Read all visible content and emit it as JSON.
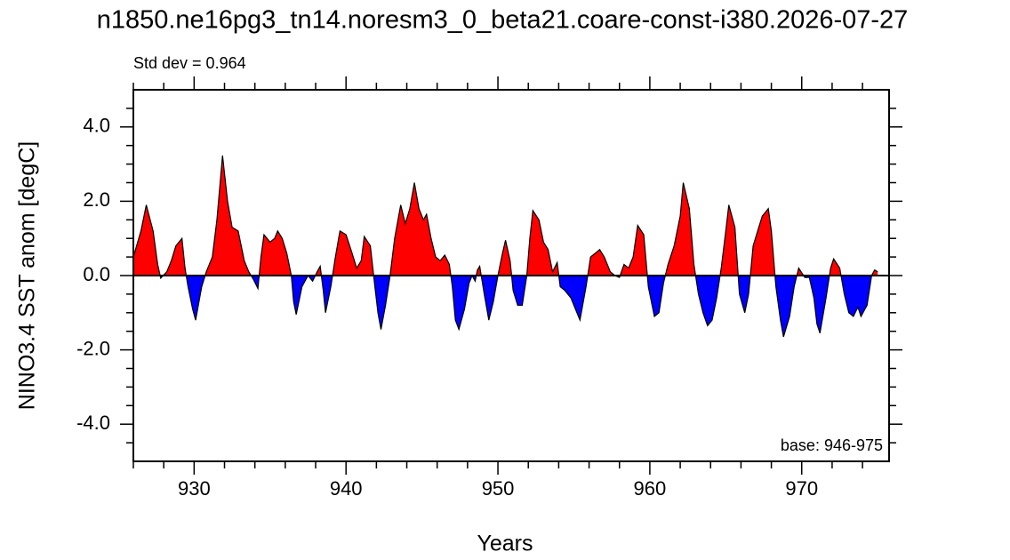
{
  "chart_data": {
    "type": "area",
    "title": "n1850.ne16pg3_tn14.noresm3_0_beta21.coare-const-i380.2026-07-27",
    "subtitle": "Std dev = 0.964",
    "annotation": "base: 946-975",
    "xlabel": "Years",
    "ylabel": "NINO3.4 SST anom [degC]",
    "positive_color": "#ff0000",
    "negative_color": "#0000ff",
    "line_color": "#000000",
    "xlim": [
      926,
      975.75
    ],
    "ylim": [
      -5,
      5
    ],
    "xticks": [
      930,
      940,
      950,
      960,
      970
    ],
    "xminorticks": [
      926,
      928,
      932,
      934,
      936,
      938,
      942,
      944,
      946,
      948,
      952,
      954,
      956,
      958,
      962,
      964,
      966,
      968,
      972,
      974
    ],
    "yticks": [
      {
        "value": -4,
        "label": "-4.0"
      },
      {
        "value": -2,
        "label": "-2.0"
      },
      {
        "value": 0,
        "label": "0.0"
      },
      {
        "value": 2,
        "label": "2.0"
      },
      {
        "value": 4,
        "label": "4.0"
      }
    ],
    "yminorticks": [
      -4.5,
      -3.5,
      -3,
      -2.5,
      -1.5,
      -1,
      -0.5,
      0.5,
      1,
      1.5,
      2.5,
      3,
      3.5,
      4.5
    ],
    "x": [
      926.0,
      926.5,
      926.85,
      927.3,
      927.6,
      927.8,
      928.2,
      928.5,
      928.8,
      929.2,
      929.4,
      929.6,
      929.9,
      930.1,
      930.5,
      930.8,
      931.2,
      931.5,
      931.87,
      932.2,
      932.5,
      932.9,
      933.3,
      933.6,
      933.9,
      934.2,
      934.4,
      934.6,
      935.0,
      935.3,
      935.5,
      935.8,
      936.1,
      936.4,
      936.55,
      936.72,
      937.1,
      937.5,
      937.8,
      938.1,
      938.3,
      938.5,
      938.65,
      939.0,
      939.3,
      939.6,
      940.0,
      940.4,
      940.7,
      941.0,
      941.2,
      941.6,
      941.9,
      942.1,
      942.3,
      942.6,
      942.9,
      943.2,
      943.6,
      943.9,
      944.2,
      944.5,
      944.8,
      945.1,
      945.3,
      945.6,
      945.9,
      946.2,
      946.5,
      946.8,
      947.0,
      947.2,
      947.43,
      947.8,
      948.1,
      948.3,
      948.5,
      948.65,
      948.8,
      949.1,
      949.4,
      949.7,
      950.0,
      950.3,
      950.5,
      950.8,
      951.0,
      951.3,
      951.6,
      951.9,
      952.1,
      952.3,
      952.7,
      953.0,
      953.3,
      953.6,
      953.9,
      954.1,
      954.4,
      954.8,
      955.1,
      955.4,
      955.8,
      956.1,
      956.4,
      956.7,
      957.0,
      957.4,
      957.7,
      958.0,
      958.3,
      958.6,
      958.9,
      959.2,
      959.6,
      959.9,
      960.3,
      960.6,
      960.9,
      961.2,
      961.6,
      962.0,
      962.2,
      962.6,
      962.9,
      963.2,
      963.5,
      963.8,
      964.1,
      964.4,
      964.7,
      965.0,
      965.2,
      965.6,
      965.9,
      966.25,
      966.5,
      966.8,
      967.1,
      967.4,
      967.8,
      968.0,
      968.3,
      968.6,
      968.8,
      969.2,
      969.5,
      969.8,
      970.2,
      970.5,
      970.8,
      971.0,
      971.2,
      971.6,
      971.9,
      972.1,
      972.5,
      972.8,
      973.1,
      973.4,
      973.7,
      973.9,
      974.3,
      974.6,
      974.8,
      975.0
    ],
    "values": [
      0.5,
      1.2,
      1.9,
      1.2,
      0.3,
      -0.07,
      0.1,
      0.4,
      0.8,
      1.0,
      0.2,
      -0.3,
      -0.9,
      -1.2,
      -0.3,
      0.1,
      0.5,
      1.5,
      3.23,
      2.0,
      1.3,
      1.2,
      0.4,
      0.1,
      -0.1,
      -0.35,
      0.5,
      1.1,
      0.9,
      1.0,
      1.2,
      1.0,
      0.6,
      0.0,
      -0.7,
      -1.05,
      -0.3,
      0.0,
      -0.15,
      0.1,
      0.25,
      -0.4,
      -1.0,
      -0.3,
      0.5,
      1.2,
      1.1,
      0.6,
      0.2,
      0.4,
      1.05,
      0.8,
      -0.3,
      -1.0,
      -1.45,
      -0.8,
      0.0,
      1.0,
      1.9,
      1.4,
      1.8,
      2.5,
      1.8,
      1.5,
      1.65,
      1.0,
      0.5,
      0.4,
      0.55,
      0.3,
      -0.3,
      -1.2,
      -1.45,
      -0.9,
      -0.2,
      0.0,
      -0.15,
      0.15,
      0.25,
      -0.5,
      -1.2,
      -0.7,
      0.0,
      0.6,
      0.95,
      0.4,
      -0.4,
      -0.8,
      -0.8,
      0.0,
      1.0,
      1.75,
      1.5,
      0.9,
      0.7,
      0.1,
      0.35,
      -0.3,
      -0.4,
      -0.6,
      -0.9,
      -1.2,
      -0.3,
      0.5,
      0.6,
      0.7,
      0.5,
      0.1,
      0.0,
      -0.05,
      0.3,
      0.2,
      0.5,
      1.35,
      1.1,
      -0.3,
      -1.1,
      -1.0,
      -0.2,
      0.3,
      0.8,
      1.6,
      2.5,
      1.8,
      0.3,
      -0.5,
      -1.0,
      -1.35,
      -1.2,
      -0.6,
      0.2,
      1.2,
      1.9,
      1.3,
      -0.5,
      -1.0,
      -0.5,
      0.8,
      1.2,
      1.6,
      1.8,
      1.2,
      -0.3,
      -1.2,
      -1.65,
      -1.1,
      -0.3,
      0.2,
      -0.05,
      -0.05,
      -0.6,
      -1.3,
      -1.55,
      -0.6,
      0.2,
      0.45,
      0.2,
      -0.5,
      -1.0,
      -1.1,
      -0.85,
      -1.1,
      -0.8,
      0.0,
      0.15,
      0.1
    ]
  }
}
